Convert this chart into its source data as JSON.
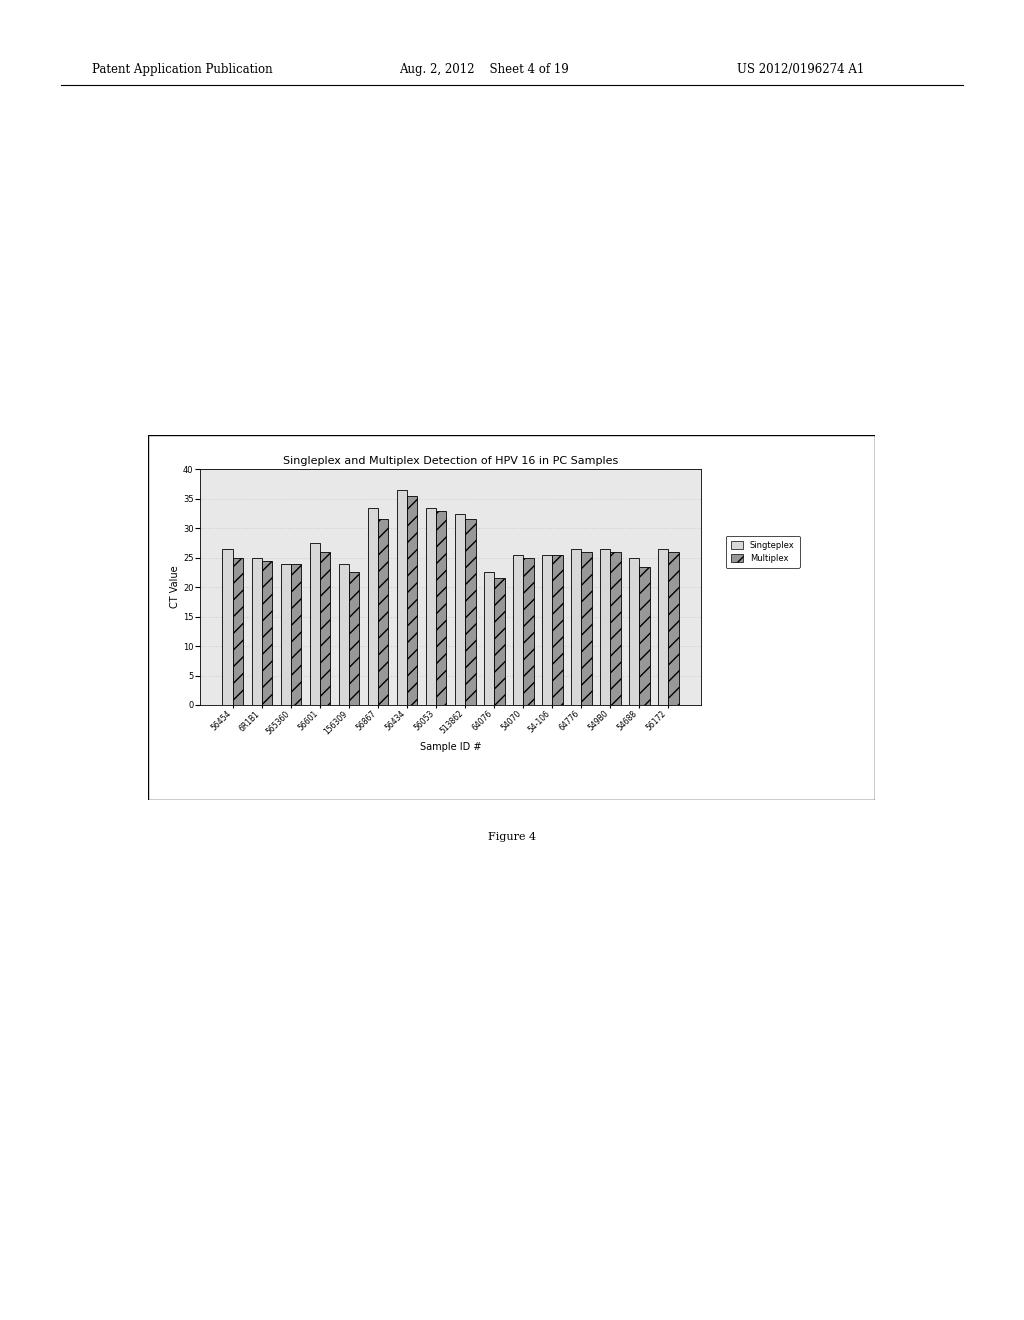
{
  "title": "Singleplex and Multiplex Detection of HPV 16 in PC Samples",
  "xlabel": "Sample ID #",
  "ylabel": "CT Value",
  "categories": [
    "56454",
    "6R1B1",
    "565360",
    "56601",
    "156309",
    "56867",
    "56434",
    "56053",
    "513862",
    "64076",
    "54070",
    "54-106",
    "64776",
    "549B0",
    "54688",
    "56172"
  ],
  "singleplex": [
    26.5,
    25.0,
    24.0,
    27.5,
    24.0,
    33.5,
    36.5,
    33.5,
    32.5,
    22.5,
    25.5,
    25.5,
    26.5,
    26.5,
    25.0,
    26.5
  ],
  "multiplex": [
    25.0,
    24.5,
    24.0,
    26.0,
    22.5,
    31.5,
    35.5,
    33.0,
    31.5,
    21.5,
    25.0,
    25.5,
    26.0,
    26.0,
    23.5,
    26.0
  ],
  "ylim": [
    0,
    40
  ],
  "yticks": [
    0,
    5,
    10,
    15,
    20,
    25,
    30,
    35,
    40
  ],
  "singleplex_color": "#d8d8d8",
  "multiplex_color": "#989898",
  "bar_edge_color": "#000000",
  "grid_color": "#cccccc",
  "figure_bg": "#ffffff",
  "chart_bg": "#e8e8e8",
  "header_left": "Patent Application Publication",
  "header_mid": "Aug. 2, 2012    Sheet 4 of 19",
  "header_right": "US 2012/0196274 A1",
  "caption": "Figure 4",
  "legend_labels": [
    "Singteplex",
    "Multiplex"
  ]
}
